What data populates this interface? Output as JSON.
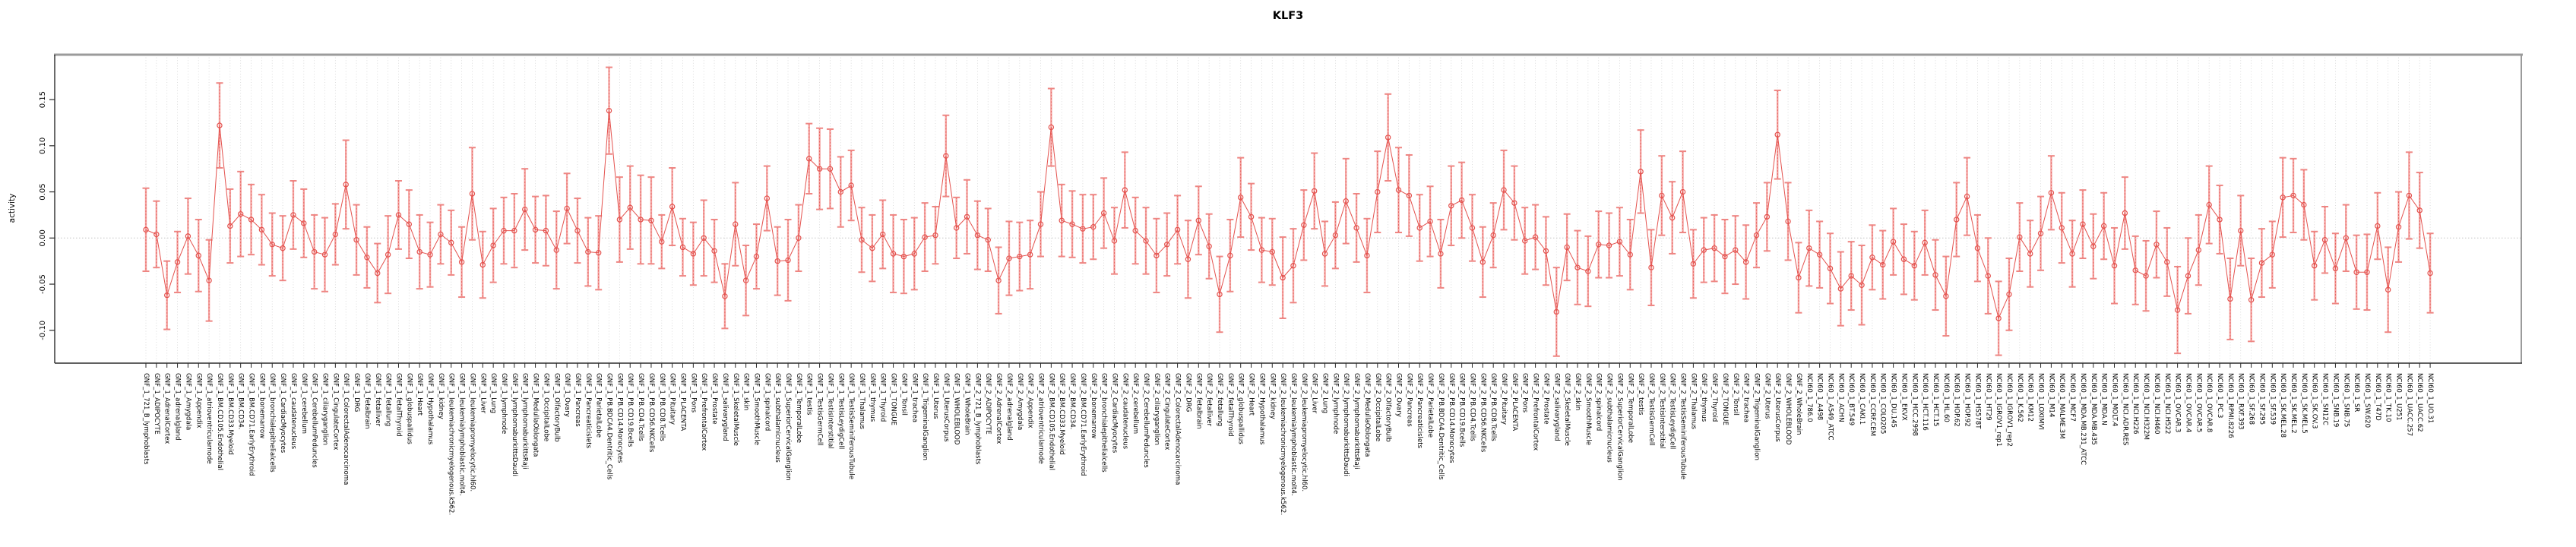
{
  "header": {
    "title": "KLF3"
  },
  "chart_data": {
    "type": "line",
    "subtype": "points-with-error-bars",
    "title": "KLF3",
    "xlabel": "",
    "ylabel": "activity",
    "legend": "none",
    "grid": {
      "vertical_dotted_per_category": true,
      "dotted_zero_line": true
    },
    "marker": "open-circle",
    "point_color": "#e4524e",
    "errorbar_color": "#f4a3a1",
    "errorbar_cap_color": "#ee8683",
    "ylim": [
      -0.135,
      0.198
    ],
    "yticks": [
      "0.15",
      "0.10",
      "0.05",
      "0.00",
      "-0.05",
      "-0.10"
    ],
    "ytick_values": [
      0.15,
      0.1,
      0.05,
      0.0,
      -0.05,
      -0.1
    ],
    "categories": [
      "GNF_1_721_B_lymphoblasts",
      "GNF_1_ADIPOCYTE",
      "GNF_1_AdrenalCortex",
      "GNF_1_adrenalgland",
      "GNF_1_Amygdala",
      "GNF_1_Appendix",
      "GNF_1_atrioventricularnode",
      "GNF_1_BM.CD105.Endothelial",
      "GNF_1_BM.CD33.Myeloid",
      "GNF_1_BM.CD34.",
      "GNF_1_BM.CD71.EarlyErythroid",
      "GNF_1_bonemarrow",
      "GNF_1_bronchialepithelialcells",
      "GNF_1_CardiacMyocytes",
      "GNF_1_caudatenucleus",
      "GNF_1_cerebellum",
      "GNF_1_CerebellumPeduncles",
      "GNF_1_ciliaryganglion",
      "GNF_1_CingulateCortex",
      "GNF_1_ColorectalAdenocarcinoma",
      "GNF_1_DRG",
      "GNF_1_fetalbrain",
      "GNF_1_fetalliver",
      "GNF_1_fetallung",
      "GNF_1_fetalThyroid",
      "GNF_1_globuspallidus",
      "GNF_1_Heart",
      "GNF_1_Hypothalamus",
      "GNF_1_kidney",
      "GNF_1_leukemiachronicmyelogenous.k562.",
      "GNF_1_leukemialymphoblastic.molt4.",
      "GNF_1_leukemiapromyelocytic.hl60.",
      "GNF_1_Liver",
      "GNF_1_Lung",
      "GNF_1_lymphnode",
      "GNF_1_lymphomaburkittsDaudi",
      "GNF_1_lymphomaburkittsRaji",
      "GNF_1_MedullaOblongata",
      "GNF_1_OccipitalLobe",
      "GNF_1_OlfactoryBulb",
      "GNF_1_Ovary",
      "GNF_1_Pancreas",
      "GNF_1_Pancreaticislets",
      "GNF_1_ParietalLobe",
      "GNF_1_PB.BDCA4.Dentritic_Cells",
      "GNF_1_PB.CD14.Monocytes",
      "GNF_1_PB.CD19.Bcells",
      "GNF_1_PB.CD4.Tcells",
      "GNF_1_PB.CD56.NKCells",
      "GNF_1_PB.CD8.Tcells",
      "GNF_1_Pituitary",
      "GNF_1_PLACENTA",
      "GNF_1_Pons",
      "GNF_1_PrefrontalCortex",
      "GNF_1_Prostate",
      "GNF_1_salivarygland",
      "GNF_1_SkeletalMuscle",
      "GNF_1_skin",
      "GNF_1_SmoothMuscle",
      "GNF_1_spinalcord",
      "GNF_1_subthalamicnucleus",
      "GNF_1_SuperiorCervicalGanglion",
      "GNF_1_TemporalLobe",
      "GNF_1_testis",
      "GNF_1_TestisGermCell",
      "GNF_1_TestisInterstitial",
      "GNF_1_TestisLeydigCell",
      "GNF_1_TestisSeminiferousTubule",
      "GNF_1_Thalamus",
      "GNF_1_thymus",
      "GNF_1_Thyroid",
      "GNF_1_TONGUE",
      "GNF_1_Tonsil",
      "GNF_1_trachea",
      "GNF_1_TrigeminalGanglion",
      "GNF_1_Uterus",
      "GNF_1_UterusCorpus",
      "GNF_1_WHOLEBLOOD",
      "GNF_1_WholeBrain",
      "GNF_2_721_B_lymphoblasts",
      "GNF_2_ADIPOCYTE",
      "GNF_2_AdrenalCortex",
      "GNF_2_adrenalgland",
      "GNF_2_Amygdala",
      "GNF_2_Appendix",
      "GNF_2_atrioventricularnode",
      "GNF_2_BM.CD105.Endothelial",
      "GNF_2_BM.CD33.Myeloid",
      "GNF_2_BM.CD34.",
      "GNF_2_BM.CD71.EarlyErythroid",
      "GNF_2_bonemarrow",
      "GNF_2_bronchialepithelialcells",
      "GNF_2_CardiacMyocytes",
      "GNF_2_caudatenucleus",
      "GNF_2_cerebellum",
      "GNF_2_CerebellumPeduncles",
      "GNF_2_ciliaryganglion",
      "GNF_2_CingulateCortex",
      "GNF_2_ColorectalAdenocarcinoma",
      "GNF_2_DRG",
      "GNF_2_fetalbrain",
      "GNF_2_fetalliver",
      "GNF_2_fetallung",
      "GNF_2_fetalThyroid",
      "GNF_2_globuspallidus",
      "GNF_2_Heart",
      "GNF_2_Hypothalamus",
      "GNF_2_kidney",
      "GNF_2_leukemiachronicmyelogenous.k562.",
      "GNF_2_leukemialymphoblastic.molt4.",
      "GNF_2_leukemiapromyelocytic.hl60.",
      "GNF_2_Liver",
      "GNF_2_Lung",
      "GNF_2_lymphnode",
      "GNF_2_lymphomaburkittsDaudi",
      "GNF_2_lymphomaburkittsRaji",
      "GNF_2_MedullaOblongata",
      "GNF_2_OccipitalLobe",
      "GNF_2_OlfactoryBulb",
      "GNF_2_Ovary",
      "GNF_2_Pancreas",
      "GNF_2_Pancreaticislets",
      "GNF_2_ParietalLobe",
      "GNF_2_PB.BDCA4.Dentritic_Cells",
      "GNF_2_PB.CD14.Monocytes",
      "GNF_2_PB.CD19.Bcells",
      "GNF_2_PB.CD4.Tcells",
      "GNF_2_PB.CD56.NKCells",
      "GNF_2_PB.CD8.Tcells",
      "GNF_2_Pituitary",
      "GNF_2_PLACENTA",
      "GNF_2_Pons",
      "GNF_2_PrefrontalCortex",
      "GNF_2_Prostate",
      "GNF_2_salivarygland",
      "GNF_2_SkeletalMuscle",
      "GNF_2_skin",
      "GNF_2_SmoothMuscle",
      "GNF_2_spinalcord",
      "GNF_2_subthalamicnucleus",
      "GNF_2_SuperiorCervicalGanglion",
      "GNF_2_TemporalLobe",
      "GNF_2_testis",
      "GNF_2_TestisGermCell",
      "GNF_2_TestisInterstitial",
      "GNF_2_TestisLeydigCell",
      "GNF_2_TestisSeminiferousTubule",
      "GNF_2_Thalamus",
      "GNF_2_thymus",
      "GNF_2_Thyroid",
      "GNF_2_TONGUE",
      "GNF_2_Tonsil",
      "GNF_2_trachea",
      "GNF_2_TrigeminalGanglion",
      "GNF_2_Uterus",
      "GNF_2_UterusCorpus",
      "GNF_2_WHOLEBLOOD",
      "GNF_2_WholeBrain",
      "NCI60_1_786.0",
      "NCI60_1_A498",
      "NCI60_1_A549_ATCC",
      "NCI60_1_ACHN",
      "NCI60_1_BT.549",
      "NCI60_1_CAKI.1",
      "NCI60_1_CCRF.CEM",
      "NCI60_1_COLO205",
      "NCI60_1_DU.145",
      "NCI60_1_EKVX",
      "NCI60_1_HCC.2998",
      "NCI60_1_HCT.116",
      "NCI60_1_HCT.15",
      "NCI60_1_HL.60",
      "NCI60_1_HOP.62",
      "NCI60_1_HOP.92",
      "NCI60_1_HS578T",
      "NCI60_1_HT29",
      "NCI60_1_IGROV1_rep1",
      "NCI60_1_IGROV1_rep2",
      "NCI60_1_K.562",
      "NCI60_1_KM12",
      "NCI60_1_LOXIMVI",
      "NCI60_1_M14",
      "NCI60_1_MALME.3M",
      "NCI60_1_MCF7",
      "NCI60_1_MDA.MB.231_ATCC",
      "NCI60_1_MDA.MB.435",
      "NCI60_1_MDA.N",
      "NCI60_1_MOLT.4",
      "NCI60_1_NCI.ADR.RES",
      "NCI60_1_NCI.H226",
      "NCI60_1_NCI.H322M",
      "NCI60_1_NCI.H460",
      "NCI60_1_NCI.H522",
      "NCI60_1_OVCAR.3",
      "NCI60_1_OVCAR.4",
      "NCI60_1_OVCAR.5",
      "NCI60_1_OVCAR.8",
      "NCI60_1_PC.3",
      "NCI60_1_RPMI.8226",
      "NCI60_1_RXF.393",
      "NCI60_1_SF.268",
      "NCI60_1_SF.295",
      "NCI60_1_SF.539",
      "NCI60_1_SK.MEL.28",
      "NCI60_1_SK.MEL.2",
      "NCI60_1_SK.MEL.5",
      "NCI60_1_SK.OV.3",
      "NCI60_1_SN12C",
      "NCI60_1_SNB.19",
      "NCI60_1_SNB.75",
      "NCI60_1_SR",
      "NCI60_1_SW.620",
      "NCI60_1_T47D",
      "NCI60_1_TK.10",
      "NCI60_1_U251",
      "NCI60_1_UACC.257",
      "NCI60_1_UACC.62",
      "NCI60_1_UO.31"
    ],
    "values": [
      0.009,
      0.004,
      -0.062,
      -0.026,
      0.002,
      -0.019,
      -0.046,
      0.122,
      0.013,
      0.026,
      0.02,
      0.009,
      -0.007,
      -0.011,
      0.025,
      0.016,
      -0.015,
      -0.018,
      0.004,
      0.058,
      -0.002,
      -0.021,
      -0.038,
      -0.018,
      0.025,
      0.015,
      -0.015,
      -0.018,
      0.004,
      -0.005,
      -0.026,
      0.048,
      -0.029,
      -0.008,
      0.008,
      0.008,
      0.031,
      0.009,
      0.008,
      -0.013,
      0.032,
      0.008,
      -0.015,
      -0.016,
      0.138,
      0.02,
      0.033,
      0.02,
      0.019,
      -0.004,
      0.034,
      -0.01,
      -0.017,
      0.0,
      -0.014,
      -0.063,
      0.015,
      -0.046,
      -0.02,
      0.043,
      -0.025,
      -0.024,
      0.0,
      0.086,
      0.075,
      0.075,
      0.05,
      0.057,
      -0.002,
      -0.011,
      0.004,
      -0.017,
      -0.02,
      -0.017,
      0.001,
      0.003,
      0.089,
      0.011,
      0.023,
      0.003,
      -0.002,
      -0.046,
      -0.022,
      -0.02,
      -0.018,
      0.015,
      0.12,
      0.019,
      0.015,
      0.01,
      0.012,
      0.027,
      -0.003,
      0.052,
      0.008,
      -0.003,
      -0.019,
      -0.007,
      0.009,
      -0.023,
      0.019,
      -0.009,
      -0.061,
      -0.019,
      0.044,
      0.023,
      -0.013,
      -0.015,
      -0.043,
      -0.03,
      0.014,
      0.051,
      -0.017,
      0.003,
      0.04,
      0.011,
      -0.019,
      0.05,
      0.109,
      0.052,
      0.046,
      0.011,
      0.018,
      -0.017,
      0.035,
      0.041,
      0.011,
      -0.026,
      0.003,
      0.052,
      0.038,
      -0.003,
      0.001,
      -0.014,
      -0.08,
      -0.01,
      -0.032,
      -0.036,
      -0.007,
      -0.008,
      -0.004,
      -0.018,
      0.072,
      -0.032,
      0.046,
      0.022,
      0.05,
      -0.028,
      -0.013,
      -0.011,
      -0.02,
      -0.013,
      -0.026,
      0.003,
      0.023,
      0.112,
      0.018,
      -0.043,
      -0.011,
      -0.018,
      -0.033,
      -0.055,
      -0.041,
      -0.051,
      -0.021,
      -0.029,
      -0.004,
      -0.023,
      -0.03,
      -0.005,
      -0.04,
      -0.063,
      0.02,
      0.045,
      -0.011,
      -0.041,
      -0.087,
      -0.061,
      0.001,
      -0.017,
      0.005,
      0.049,
      0.011,
      -0.017,
      0.015,
      -0.009,
      0.013,
      -0.03,
      0.027,
      -0.035,
      -0.041,
      -0.007,
      -0.026,
      -0.078,
      -0.041,
      -0.013,
      0.036,
      0.02,
      -0.066,
      0.008,
      -0.067,
      -0.027,
      -0.018,
      0.044,
      0.046,
      0.036,
      -0.03,
      -0.002,
      -0.033,
      0.0,
      -0.037,
      -0.037,
      0.013,
      -0.056,
      0.012,
      0.046,
      0.03,
      -0.038
    ],
    "errors": [
      0.045,
      0.036,
      0.037,
      0.033,
      0.041,
      0.039,
      0.044,
      0.046,
      0.04,
      0.046,
      0.038,
      0.038,
      0.034,
      0.035,
      0.037,
      0.037,
      0.04,
      0.04,
      0.033,
      0.048,
      0.038,
      0.033,
      0.032,
      0.042,
      0.037,
      0.037,
      0.04,
      0.035,
      0.032,
      0.035,
      0.038,
      0.05,
      0.036,
      0.04,
      0.036,
      0.04,
      0.044,
      0.036,
      0.038,
      0.042,
      0.038,
      0.035,
      0.037,
      0.04,
      0.047,
      0.046,
      0.045,
      0.048,
      0.047,
      0.029,
      0.042,
      0.031,
      0.034,
      0.041,
      0.034,
      0.035,
      0.045,
      0.038,
      0.035,
      0.035,
      0.037,
      0.044,
      0.036,
      0.038,
      0.044,
      0.043,
      0.038,
      0.038,
      0.035,
      0.036,
      0.037,
      0.042,
      0.04,
      0.039,
      0.037,
      0.031,
      0.044,
      0.033,
      0.04,
      0.037,
      0.034,
      0.036,
      0.04,
      0.037,
      0.037,
      0.035,
      0.042,
      0.039,
      0.036,
      0.037,
      0.035,
      0.038,
      0.036,
      0.041,
      0.036,
      0.036,
      0.04,
      0.034,
      0.037,
      0.042,
      0.037,
      0.035,
      0.041,
      0.039,
      0.043,
      0.036,
      0.035,
      0.036,
      0.044,
      0.04,
      0.038,
      0.041,
      0.035,
      0.036,
      0.046,
      0.037,
      0.04,
      0.044,
      0.047,
      0.046,
      0.044,
      0.036,
      0.038,
      0.037,
      0.043,
      0.041,
      0.036,
      0.038,
      0.035,
      0.043,
      0.04,
      0.036,
      0.035,
      0.037,
      0.048,
      0.036,
      0.04,
      0.038,
      0.036,
      0.035,
      0.037,
      0.038,
      0.045,
      0.041,
      0.043,
      0.039,
      0.044,
      0.037,
      0.035,
      0.036,
      0.04,
      0.037,
      0.04,
      0.035,
      0.037,
      0.048,
      0.042,
      0.038,
      0.041,
      0.036,
      0.038,
      0.04,
      0.037,
      0.043,
      0.035,
      0.037,
      0.036,
      0.038,
      0.037,
      0.035,
      0.038,
      0.043,
      0.04,
      0.042,
      0.036,
      0.041,
      0.04,
      0.039,
      0.037,
      0.036,
      0.04,
      0.04,
      0.038,
      0.036,
      0.037,
      0.035,
      0.036,
      0.041,
      0.039,
      0.037,
      0.038,
      0.036,
      0.037,
      0.047,
      0.041,
      0.038,
      0.042,
      0.037,
      0.044,
      0.038,
      0.045,
      0.037,
      0.036,
      0.043,
      0.04,
      0.038,
      0.037,
      0.036,
      0.038,
      0.036,
      0.04,
      0.041,
      0.036,
      0.046,
      0.038,
      0.047,
      0.041,
      0.043
    ]
  }
}
